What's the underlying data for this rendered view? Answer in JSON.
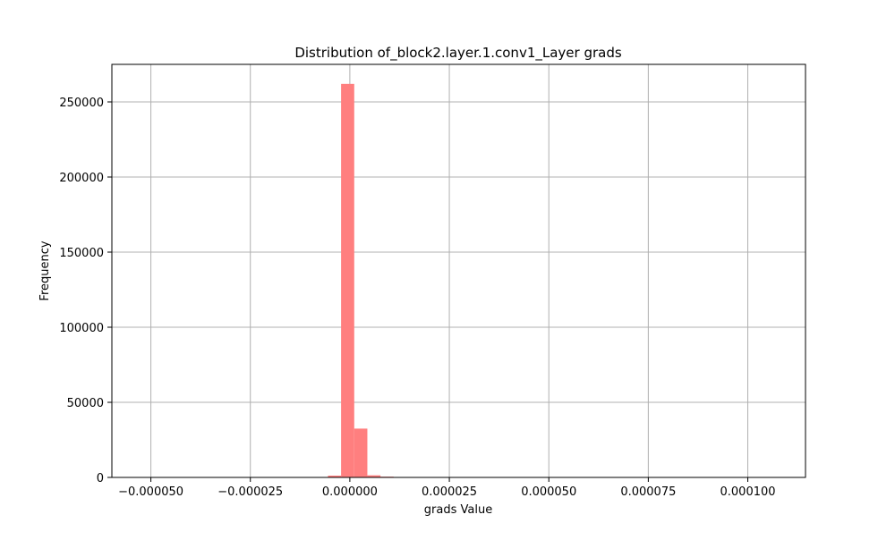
{
  "chart_data": {
    "type": "bar",
    "title": "Distribution of_block2.layer.1.conv1_Layer grads",
    "xlabel": "grads Value",
    "ylabel": "Frequency",
    "xlim": [
      -5.98e-05,
      0.0001145
    ],
    "ylim": [
      0,
      275000
    ],
    "grid": true,
    "bar_color": "#ff7f7f",
    "bin_edges": [
      -5.5e-05,
      -5.17e-05,
      -4.84e-05,
      -4.51e-05,
      -4.18e-05,
      -3.85e-05,
      -3.52e-05,
      -3.19e-05,
      -2.86e-05,
      -2.53e-05,
      -2.2e-05,
      -1.87e-05,
      -1.54e-05,
      -1.21e-05,
      -8.8e-06,
      -5.5e-06,
      -2.2e-06,
      1.1e-06,
      4.4e-06,
      7.7e-06,
      1.1e-05,
      1.43e-05,
      1.76e-05,
      2.09e-05,
      2.42e-05,
      2.75e-05,
      3.08e-05,
      3.41e-05,
      3.74e-05,
      4.07e-05,
      4.4e-05,
      4.73e-05,
      5.06e-05,
      5.39e-05,
      5.72e-05,
      6.05e-05,
      6.38e-05,
      6.71e-05,
      7.04e-05,
      7.37e-05,
      7.7e-05,
      8.03e-05,
      8.36e-05,
      8.69e-05,
      9.02e-05,
      9.35e-05,
      9.68e-05,
      0.0001001,
      0.0001034,
      0.0001067,
      0.00011
    ],
    "counts": [
      0,
      0,
      0,
      0,
      0,
      0,
      0,
      0,
      0,
      0,
      0,
      0,
      0,
      0,
      200,
      1200,
      262000,
      32500,
      1400,
      500,
      80,
      30,
      10,
      0,
      0,
      0,
      0,
      0,
      0,
      0,
      0,
      0,
      0,
      0,
      0,
      0,
      0,
      0,
      0,
      0,
      0,
      0,
      0,
      0,
      0,
      0,
      0,
      0,
      0,
      0
    ],
    "x_ticks": [
      -5e-05,
      -2.5e-05,
      0,
      2.5e-05,
      5e-05,
      7.5e-05,
      0.0001
    ],
    "x_tick_labels": [
      "−0.000050",
      "−0.000025",
      "0.000000",
      "0.000025",
      "0.000050",
      "0.000075",
      "0.000100"
    ],
    "y_ticks": [
      0,
      50000,
      100000,
      150000,
      200000,
      250000
    ],
    "y_tick_labels": [
      "0",
      "50000",
      "100000",
      "150000",
      "200000",
      "250000"
    ]
  }
}
